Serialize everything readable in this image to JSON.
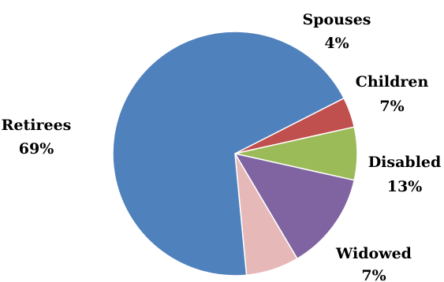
{
  "chart_data": {
    "type": "pie",
    "title": "",
    "slices": [
      {
        "label": "Spouses",
        "value": 4,
        "display": "4%",
        "color": "#C0504D"
      },
      {
        "label": "Children",
        "value": 7,
        "display": "7%",
        "color": "#9BBB59"
      },
      {
        "label": "Disabled",
        "value": 13,
        "display": "13%",
        "color": "#8064A2"
      },
      {
        "label": "Widowed",
        "value": 7,
        "display": "7%",
        "color": "#E6B9B8"
      },
      {
        "label": "Retirees",
        "value": 69,
        "display": "69%",
        "color": "#4F81BD"
      }
    ],
    "start_angle_deg": 63,
    "direction": "clockwise",
    "legend": "none",
    "labels": "outside"
  }
}
